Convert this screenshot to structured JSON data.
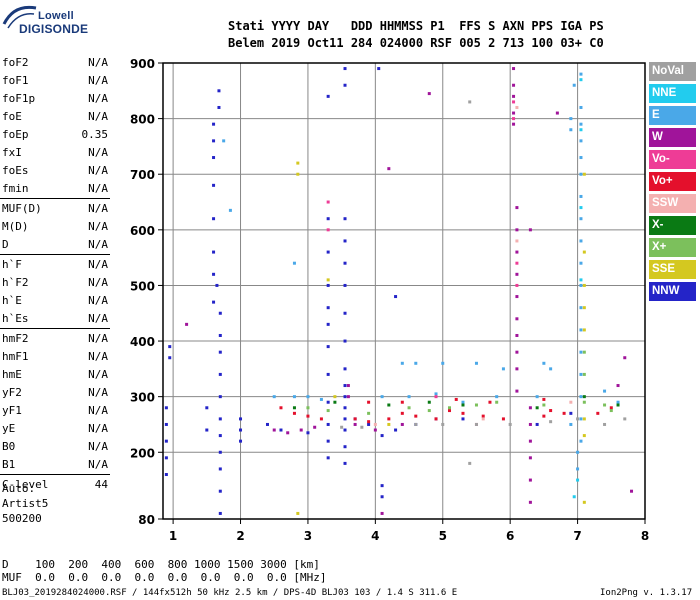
{
  "logo": {
    "line1": "Lowell",
    "line2": "DIGISONDE"
  },
  "header": {
    "row1": "Stati YYYY DAY   DDD HHMMSS P1  FFS S AXN PPS IGA PS",
    "row2": "Belem 2019 Oct11 284 024000 RSF 005 2 713 100 03+ C0"
  },
  "params": [
    {
      "name": "foF2",
      "value": "N/A"
    },
    {
      "name": "foF1",
      "value": "N/A"
    },
    {
      "name": "foF1p",
      "value": "N/A"
    },
    {
      "name": "foE",
      "value": "N/A"
    },
    {
      "name": "foEp",
      "value": "0.35"
    },
    {
      "name": "fxI",
      "value": "N/A"
    },
    {
      "name": "foEs",
      "value": "N/A"
    },
    {
      "name": "fmin",
      "value": "N/A"
    },
    {
      "name": "MUF(D)",
      "value": "N/A"
    },
    {
      "name": "M(D)",
      "value": "N/A"
    },
    {
      "name": "D",
      "value": "N/A"
    },
    {
      "name": "h`F",
      "value": "N/A"
    },
    {
      "name": "h`F2",
      "value": "N/A"
    },
    {
      "name": "h`E",
      "value": "N/A"
    },
    {
      "name": "h`Es",
      "value": "N/A"
    },
    {
      "name": "hmF2",
      "value": "N/A"
    },
    {
      "name": "hmF1",
      "value": "N/A"
    },
    {
      "name": "hmE",
      "value": "N/A"
    },
    {
      "name": "yF2",
      "value": "N/A"
    },
    {
      "name": "yF1",
      "value": "N/A"
    },
    {
      "name": "yE",
      "value": "N/A"
    },
    {
      "name": "B0",
      "value": "N/A"
    },
    {
      "name": "B1",
      "value": "N/A"
    },
    {
      "name": "C-level",
      "value": "44"
    }
  ],
  "autoscale": {
    "line1": "Auto:",
    "line2": "Artist5",
    "line3": "500200"
  },
  "legend": [
    {
      "label": "NoVal",
      "color": "#a0a0a0"
    },
    {
      "label": "NNE",
      "color": "#22ccee"
    },
    {
      "label": "E",
      "color": "#4aa8e8"
    },
    {
      "label": "W",
      "color": "#a0149a"
    },
    {
      "label": "Vo-",
      "color": "#ee3c96"
    },
    {
      "label": "Vo+",
      "color": "#e4102c"
    },
    {
      "label": "SSW",
      "color": "#f4b0b0"
    },
    {
      "label": "X-",
      "color": "#0a7a14"
    },
    {
      "label": "X+",
      "color": "#7cc05c"
    },
    {
      "label": "SSE",
      "color": "#d4c820"
    },
    {
      "label": "NNW",
      "color": "#2424c8"
    }
  ],
  "footer": {
    "d_row": "D    100  200  400  600  800 1000 1500 3000 [km]",
    "muf_row": "MUF  0.0  0.0  0.0  0.0  0.0  0.0  0.0  0.0 [MHz]",
    "file_info": "BLJ03_2019284024000.RSF / 144fx512h 50 kHz 2.5 km / DPS-4D BLJ03 103 / 1.4 S 311.6 E",
    "version": "Ion2Png v. 1.3.17"
  },
  "chart_data": {
    "type": "scatter",
    "title": "",
    "xlabel": "",
    "ylabel": "",
    "xlim": [
      0.85,
      8.0
    ],
    "ylim": [
      80,
      900
    ],
    "x_ticks": [
      1,
      2,
      3,
      4,
      5,
      6,
      7,
      8
    ],
    "y_ticks": [
      80,
      200,
      300,
      400,
      500,
      600,
      700,
      800,
      900
    ],
    "grid": true,
    "legend_position": "right",
    "series": [
      {
        "name": "NNW",
        "color": "#2424c8",
        "points": [
          [
            1.6,
            790
          ],
          [
            1.6,
            760
          ],
          [
            1.6,
            730
          ],
          [
            1.6,
            680
          ],
          [
            1.6,
            620
          ],
          [
            1.6,
            560
          ],
          [
            1.6,
            520
          ],
          [
            1.65,
            500
          ],
          [
            1.6,
            470
          ],
          [
            1.7,
            450
          ],
          [
            1.7,
            410
          ],
          [
            1.7,
            380
          ],
          [
            1.7,
            340
          ],
          [
            1.7,
            300
          ],
          [
            1.7,
            260
          ],
          [
            1.7,
            230
          ],
          [
            1.7,
            200
          ],
          [
            1.7,
            170
          ],
          [
            1.7,
            130
          ],
          [
            1.7,
            90
          ],
          [
            1.68,
            850
          ],
          [
            1.68,
            820
          ],
          [
            3.3,
            840
          ],
          [
            3.3,
            620
          ],
          [
            3.3,
            560
          ],
          [
            3.3,
            500
          ],
          [
            3.3,
            460
          ],
          [
            3.3,
            430
          ],
          [
            3.3,
            390
          ],
          [
            3.3,
            340
          ],
          [
            3.3,
            290
          ],
          [
            3.3,
            250
          ],
          [
            3.3,
            220
          ],
          [
            3.3,
            190
          ],
          [
            3.55,
            890
          ],
          [
            3.55,
            860
          ],
          [
            3.55,
            620
          ],
          [
            3.55,
            580
          ],
          [
            3.55,
            540
          ],
          [
            3.55,
            500
          ],
          [
            3.55,
            450
          ],
          [
            3.55,
            400
          ],
          [
            3.55,
            350
          ],
          [
            3.55,
            320
          ],
          [
            3.55,
            300
          ],
          [
            3.55,
            280
          ],
          [
            3.55,
            260
          ],
          [
            3.55,
            240
          ],
          [
            3.55,
            210
          ],
          [
            3.55,
            180
          ],
          [
            4.05,
            890
          ],
          [
            4.1,
            230
          ],
          [
            4.1,
            140
          ],
          [
            4.1,
            120
          ],
          [
            4.3,
            480
          ],
          [
            0.9,
            280
          ],
          [
            0.9,
            250
          ],
          [
            0.9,
            220
          ],
          [
            0.9,
            190
          ],
          [
            0.9,
            160
          ],
          [
            0.95,
            390
          ],
          [
            0.95,
            370
          ],
          [
            1.5,
            280
          ],
          [
            1.5,
            240
          ],
          [
            2.0,
            260
          ],
          [
            2.0,
            240
          ],
          [
            2.0,
            220
          ],
          [
            2.4,
            250
          ],
          [
            2.6,
            240
          ],
          [
            3.0,
            235
          ],
          [
            3.7,
            260
          ],
          [
            3.9,
            250
          ],
          [
            4.3,
            240
          ],
          [
            4.6,
            250
          ],
          [
            4.9,
            260
          ],
          [
            5.3,
            260
          ],
          [
            6.4,
            250
          ],
          [
            6.9,
            270
          ]
        ]
      },
      {
        "name": "W",
        "color": "#a0149a",
        "points": [
          [
            6.05,
            890
          ],
          [
            6.05,
            860
          ],
          [
            6.05,
            840
          ],
          [
            6.05,
            810
          ],
          [
            6.05,
            790
          ],
          [
            6.1,
            640
          ],
          [
            6.1,
            600
          ],
          [
            6.1,
            560
          ],
          [
            6.1,
            520
          ],
          [
            6.1,
            480
          ],
          [
            6.1,
            440
          ],
          [
            6.1,
            410
          ],
          [
            6.1,
            380
          ],
          [
            6.1,
            350
          ],
          [
            6.1,
            310
          ],
          [
            6.3,
            600
          ],
          [
            6.3,
            280
          ],
          [
            6.3,
            250
          ],
          [
            6.3,
            220
          ],
          [
            6.3,
            190
          ],
          [
            6.3,
            150
          ],
          [
            6.3,
            110
          ],
          [
            3.6,
            320
          ],
          [
            3.6,
            300
          ],
          [
            2.5,
            240
          ],
          [
            2.7,
            235
          ],
          [
            2.9,
            240
          ],
          [
            3.1,
            245
          ],
          [
            3.7,
            250
          ],
          [
            4.0,
            240
          ],
          [
            4.4,
            250
          ],
          [
            4.8,
            845
          ],
          [
            4.2,
            710
          ],
          [
            6.7,
            810
          ],
          [
            7.7,
            370
          ],
          [
            7.6,
            320
          ],
          [
            7.8,
            130
          ],
          [
            1.2,
            430
          ],
          [
            4.1,
            90
          ]
        ]
      },
      {
        "name": "Vo+",
        "color": "#e4102c",
        "points": [
          [
            2.6,
            280
          ],
          [
            2.8,
            270
          ],
          [
            3.0,
            265
          ],
          [
            3.2,
            260
          ],
          [
            3.7,
            260
          ],
          [
            3.9,
            255
          ],
          [
            4.2,
            260
          ],
          [
            4.4,
            270
          ],
          [
            4.6,
            265
          ],
          [
            4.9,
            260
          ],
          [
            5.1,
            275
          ],
          [
            5.3,
            270
          ],
          [
            5.6,
            265
          ],
          [
            5.9,
            260
          ],
          [
            6.5,
            265
          ],
          [
            6.6,
            275
          ],
          [
            6.8,
            270
          ],
          [
            7.3,
            270
          ],
          [
            7.5,
            280
          ],
          [
            3.9,
            290
          ],
          [
            4.4,
            290
          ],
          [
            5.2,
            295
          ],
          [
            5.7,
            290
          ],
          [
            6.5,
            295
          ]
        ]
      },
      {
        "name": "E",
        "color": "#4aa8e8",
        "points": [
          [
            7.05,
            880
          ],
          [
            7.05,
            820
          ],
          [
            7.05,
            790
          ],
          [
            7.05,
            760
          ],
          [
            7.05,
            730
          ],
          [
            7.05,
            700
          ],
          [
            7.05,
            660
          ],
          [
            7.05,
            620
          ],
          [
            7.05,
            580
          ],
          [
            7.05,
            540
          ],
          [
            7.05,
            500
          ],
          [
            7.05,
            460
          ],
          [
            7.05,
            420
          ],
          [
            7.05,
            380
          ],
          [
            7.05,
            340
          ],
          [
            7.05,
            300
          ],
          [
            7.05,
            260
          ],
          [
            7.05,
            220
          ],
          [
            6.95,
            860
          ],
          [
            6.9,
            800
          ],
          [
            6.9,
            780
          ],
          [
            1.75,
            760
          ],
          [
            1.85,
            635
          ],
          [
            2.8,
            540
          ],
          [
            4.4,
            360
          ],
          [
            4.6,
            360
          ],
          [
            5.0,
            360
          ],
          [
            5.5,
            360
          ],
          [
            5.9,
            350
          ],
          [
            6.5,
            360
          ],
          [
            6.6,
            350
          ],
          [
            2.5,
            300
          ],
          [
            2.8,
            300
          ],
          [
            3.0,
            300
          ],
          [
            3.2,
            295
          ],
          [
            4.1,
            300
          ],
          [
            4.5,
            300
          ],
          [
            4.9,
            305
          ],
          [
            5.3,
            290
          ],
          [
            5.8,
            300
          ],
          [
            6.4,
            300
          ],
          [
            7.0,
            200
          ],
          [
            7.0,
            170
          ],
          [
            6.9,
            250
          ],
          [
            7.4,
            310
          ],
          [
            7.6,
            290
          ]
        ]
      },
      {
        "name": "X+",
        "color": "#7cc05c",
        "points": [
          [
            3.0,
            280
          ],
          [
            3.3,
            275
          ],
          [
            3.9,
            270
          ],
          [
            4.5,
            280
          ],
          [
            4.8,
            275
          ],
          [
            5.1,
            280
          ],
          [
            5.5,
            285
          ],
          [
            5.8,
            290
          ],
          [
            6.5,
            285
          ],
          [
            7.1,
            290
          ],
          [
            7.4,
            285
          ],
          [
            7.5,
            275
          ],
          [
            7.1,
            340
          ],
          [
            7.1,
            380
          ]
        ]
      },
      {
        "name": "X-",
        "color": "#0a7a14",
        "points": [
          [
            2.8,
            280
          ],
          [
            3.4,
            290
          ],
          [
            4.2,
            285
          ],
          [
            4.8,
            290
          ],
          [
            5.3,
            285
          ],
          [
            6.4,
            280
          ],
          [
            7.1,
            300
          ],
          [
            7.6,
            285
          ]
        ]
      },
      {
        "name": "SSE",
        "color": "#d4c820",
        "points": [
          [
            7.1,
            700
          ],
          [
            7.1,
            560
          ],
          [
            7.1,
            500
          ],
          [
            7.1,
            460
          ],
          [
            7.1,
            420
          ],
          [
            7.1,
            260
          ],
          [
            7.1,
            230
          ],
          [
            7.1,
            110
          ],
          [
            2.85,
            720
          ],
          [
            2.85,
            700
          ],
          [
            3.3,
            510
          ],
          [
            3.4,
            300
          ],
          [
            4.2,
            250
          ],
          [
            2.85,
            90
          ]
        ]
      },
      {
        "name": "Vo-",
        "color": "#ee3c96",
        "points": [
          [
            3.3,
            650
          ],
          [
            3.3,
            600
          ],
          [
            6.05,
            830
          ],
          [
            6.05,
            800
          ],
          [
            6.1,
            540
          ],
          [
            6.1,
            500
          ],
          [
            4.9,
            300
          ],
          [
            5.5,
            250
          ]
        ]
      },
      {
        "name": "NNE",
        "color": "#22ccee",
        "points": [
          [
            7.05,
            870
          ],
          [
            7.05,
            780
          ],
          [
            7.05,
            640
          ],
          [
            7.05,
            510
          ],
          [
            7.0,
            150
          ],
          [
            6.95,
            120
          ]
        ]
      },
      {
        "name": "NoVal",
        "color": "#a0a0a0",
        "points": [
          [
            5.4,
            830
          ],
          [
            5.4,
            180
          ],
          [
            3.5,
            245
          ],
          [
            3.8,
            245
          ],
          [
            4.6,
            250
          ],
          [
            5.0,
            250
          ],
          [
            5.5,
            250
          ],
          [
            6.0,
            250
          ],
          [
            6.6,
            255
          ],
          [
            7.0,
            260
          ],
          [
            7.4,
            250
          ],
          [
            7.7,
            260
          ]
        ]
      },
      {
        "name": "SSW",
        "color": "#f4b0b0",
        "points": [
          [
            6.1,
            820
          ],
          [
            6.1,
            580
          ],
          [
            4.0,
            250
          ],
          [
            5.6,
            260
          ],
          [
            6.9,
            290
          ]
        ]
      }
    ]
  }
}
